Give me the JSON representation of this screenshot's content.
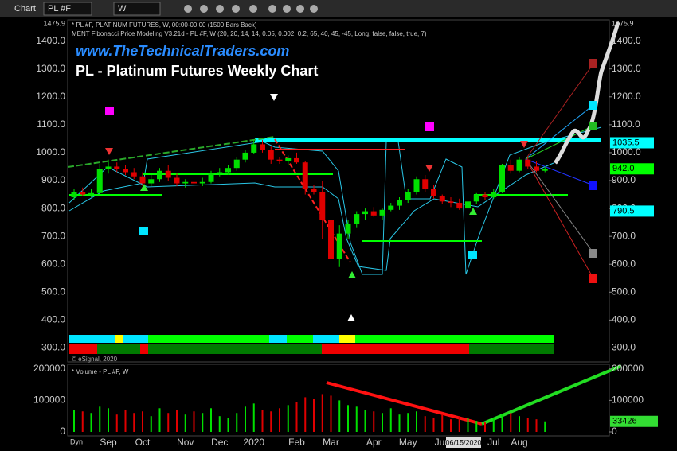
{
  "toolbar": {
    "title": "Chart",
    "symbol": "PL #F",
    "interval": "W",
    "mode": "Dyn"
  },
  "chart_data": [
    {
      "type": "candlestick",
      "title": "PL - Platinum Futures Weekly Chart",
      "watermark": "www.TheTechnicalTraders.com",
      "study_lines": [
        "* PL #F, PLATINUM FUTURES, W, 00:00-00:00 (1500 Bars Back)",
        "MENT Fibonacci Price Modeling V3.21d - PL #F, W (20, 20, 14, 14, 0.05, 0.002, 0.2, 65, 40, 45, -45, Long, false, false, true, 7)"
      ],
      "copyright": "© eSignal, 2020",
      "cursor_date": "06/15/2020",
      "categories": [
        null,
        null,
        null,
        null,
        "Sep",
        null,
        null,
        null,
        "Oct",
        null,
        null,
        null,
        null,
        "Nov",
        null,
        null,
        null,
        "Dec",
        null,
        null,
        null,
        "2020",
        null,
        null,
        null,
        null,
        "Feb",
        null,
        null,
        null,
        "Mar",
        null,
        null,
        null,
        null,
        "Apr",
        null,
        null,
        null,
        "May",
        null,
        null,
        null,
        "Jun",
        null,
        null,
        null,
        null,
        null,
        "Jul",
        null,
        null,
        "Aug",
        null,
        null,
        null
      ],
      "open": [
        840,
        860,
        850,
        855,
        940,
        950,
        940,
        930,
        915,
        890,
        905,
        935,
        910,
        890,
        895,
        890,
        895,
        925,
        930,
        945,
        975,
        1000,
        1030,
        1010,
        975,
        970,
        980,
        965,
        870,
        860,
        760,
        620,
        710,
        745,
        780,
        790,
        775,
        795,
        810,
        830,
        860,
        905,
        870,
        845,
        825,
        820,
        800,
        825,
        850,
        840,
        860,
        955,
        935,
        975,
        950,
        935
      ],
      "high": [
        870,
        875,
        870,
        960,
        975,
        965,
        955,
        945,
        930,
        920,
        945,
        955,
        925,
        905,
        915,
        910,
        935,
        945,
        955,
        985,
        1010,
        1045,
        1045,
        1025,
        985,
        990,
        1000,
        970,
        885,
        900,
        770,
        740,
        760,
        790,
        800,
        805,
        800,
        820,
        840,
        870,
        915,
        920,
        885,
        850,
        840,
        835,
        830,
        855,
        860,
        870,
        960,
        975,
        985,
        985,
        970,
        950
      ],
      "low": [
        830,
        845,
        840,
        850,
        925,
        930,
        920,
        905,
        880,
        880,
        895,
        900,
        880,
        875,
        880,
        880,
        890,
        915,
        920,
        935,
        965,
        995,
        1000,
        960,
        960,
        955,
        960,
        850,
        850,
        690,
        580,
        590,
        690,
        730,
        760,
        770,
        760,
        790,
        795,
        820,
        850,
        860,
        835,
        815,
        805,
        795,
        790,
        815,
        830,
        835,
        855,
        925,
        930,
        940,
        930,
        930
      ],
      "close": [
        860,
        850,
        855,
        940,
        950,
        940,
        930,
        915,
        890,
        905,
        935,
        910,
        890,
        895,
        890,
        895,
        925,
        930,
        945,
        975,
        1000,
        1030,
        1010,
        975,
        970,
        980,
        965,
        870,
        860,
        760,
        620,
        710,
        745,
        780,
        790,
        775,
        795,
        810,
        830,
        860,
        905,
        870,
        845,
        825,
        820,
        800,
        825,
        850,
        840,
        860,
        955,
        935,
        975,
        950,
        935,
        942
      ],
      "up_color": "#00e000",
      "down_color": "#e00000",
      "ylim": [
        250,
        1475.9
      ],
      "yticks": [
        {
          "value": 300,
          "label": "300.0"
        },
        {
          "value": 400,
          "label": "400.0"
        },
        {
          "value": 500,
          "label": "500.0"
        },
        {
          "value": 600,
          "label": "600.0"
        },
        {
          "value": 700,
          "label": "700.0"
        },
        {
          "value": 800,
          "label": "800.0"
        },
        {
          "value": 900,
          "label": "900.0"
        },
        {
          "value": 1000,
          "label": "1000.0"
        },
        {
          "value": 1100,
          "label": "1100.0"
        },
        {
          "value": 1200,
          "label": "1200.0"
        },
        {
          "value": 1300,
          "label": "1300.0"
        },
        {
          "value": 1400,
          "label": "1400.0"
        }
      ],
      "level_labels": [
        {
          "value": 1035.5,
          "label": "1035.5",
          "color": "#00ffff"
        },
        {
          "value": 790.5,
          "label": "790.5",
          "color": "#00ffff"
        },
        {
          "value": 942,
          "label": "942.0",
          "color": "#00ff00"
        }
      ]
    },
    {
      "type": "bar",
      "title": "* Volume - PL #F, W",
      "values": [
        70000,
        65000,
        60000,
        80000,
        75000,
        55000,
        70000,
        60000,
        65000,
        50000,
        75000,
        60000,
        70000,
        55000,
        65000,
        60000,
        75000,
        50000,
        45000,
        60000,
        80000,
        90000,
        70000,
        65000,
        75000,
        85000,
        95000,
        110000,
        105000,
        120000,
        115000,
        100000,
        85000,
        80000,
        70000,
        65000,
        60000,
        75000,
        55000,
        60000,
        65000,
        50000,
        45000,
        55000,
        40000,
        50000,
        45000,
        35000,
        30000,
        45000,
        55000,
        60000,
        50000,
        45000,
        40000,
        33426
      ],
      "ylim": [
        0,
        212000
      ],
      "yticks": [
        0,
        100000,
        200000
      ],
      "last_color": "#33dd33"
    }
  ]
}
